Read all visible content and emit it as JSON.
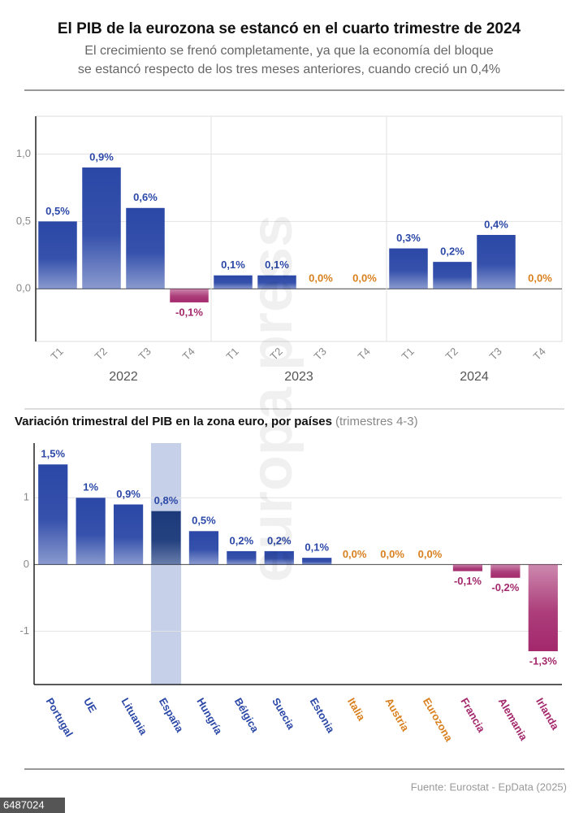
{
  "header": {
    "title": "El PIB de la eurozona se estancó en el cuarto trimestre de 2024",
    "subtitle_lines": [
      "El crecimiento se frenó completamente, ya que la economía del bloque",
      "se estancó respecto de los tres meses anteriores, cuando creció un 0,4%"
    ]
  },
  "chart_data": [
    {
      "type": "bar",
      "categories": [
        "T1",
        "T2",
        "T3",
        "T4",
        "T1",
        "T2",
        "T3",
        "T4",
        "T1",
        "T2",
        "T3",
        "T4"
      ],
      "groups": [
        "2022",
        "2023",
        "2024"
      ],
      "values": [
        0.5,
        0.9,
        0.6,
        -0.1,
        0.1,
        0.1,
        0,
        0,
        0.3,
        0.2,
        0.4,
        0
      ],
      "value_labels": [
        "0,5%",
        "0,9%",
        "0,6%",
        "-0,1%",
        "0,1%",
        "0,1%",
        "0,0%",
        "0,0%",
        "0,3%",
        "0,2%",
        "0,4%",
        "0,0%"
      ],
      "ylim": [
        -0.39,
        1.28
      ],
      "yticks": [
        {
          "value": 0,
          "label": "0,0"
        },
        {
          "value": 0.5,
          "label": "0,5"
        },
        {
          "value": 1,
          "label": "1,0"
        }
      ],
      "grid": true,
      "positive_color": "#2b48a7",
      "negative_color": "#a3286c",
      "zero_color": "#d9801f"
    },
    {
      "type": "bar",
      "title": "Variación trimestral del PIB en la zona euro, por países",
      "subtitle": "(trimestres 4-3)",
      "categories": [
        "Portugal",
        "UE",
        "Lituania",
        "España",
        "Hungría",
        "Bélgica",
        "Suecia",
        "Estonia",
        "Italia",
        "Austria",
        "Eurozona",
        "Francia",
        "Alemania",
        "Irlanda"
      ],
      "values": [
        1.5,
        1,
        0.9,
        0.8,
        0.5,
        0.2,
        0.2,
        0.1,
        0,
        0,
        0,
        -0.1,
        -0.2,
        -1.3
      ],
      "value_labels": [
        "1,5%",
        "1%",
        "0,9%",
        "0,8%",
        "0,5%",
        "0,2%",
        "0,2%",
        "0,1%",
        "0,0%",
        "0,0%",
        "0,0%",
        "-0,1%",
        "-0,2%",
        "-1,3%"
      ],
      "ylim": [
        -1.8,
        1.82
      ],
      "yticks": [
        -1,
        0,
        1
      ],
      "grid": true,
      "highlight_index": 3,
      "highlight_color": "#1c3a7a",
      "positive_color": "#2b48a7",
      "negative_color": "#a3286c",
      "zero_color": "#d9801f"
    }
  ],
  "footer": {
    "source": "Fuente: Eurostat - EpData (2025)",
    "id": "6487024",
    "watermark": "europa press"
  }
}
